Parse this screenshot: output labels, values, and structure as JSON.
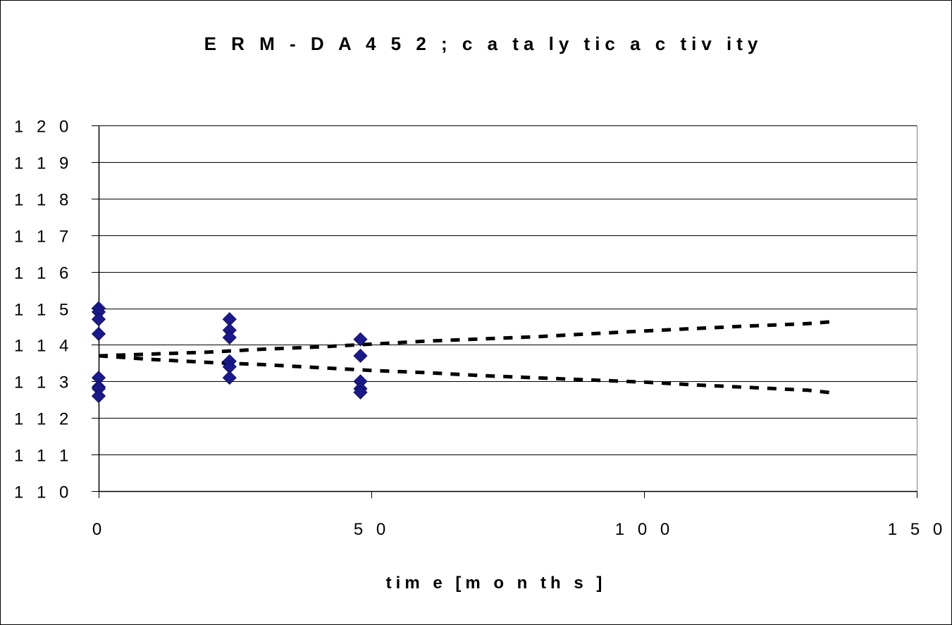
{
  "chart_data": {
    "type": "scatter",
    "title": "E R M  - D A 4 5 2 ; c a ta ly tic  a c tiv ity",
    "xlabel": "tim e  [m o n th s ]",
    "ylabel": "",
    "xlim": [
      0,
      150
    ],
    "ylim": [
      110,
      120
    ],
    "xticks": [
      0,
      50,
      100,
      150
    ],
    "xtick_labels": [
      "0",
      "5 0",
      "1 0 0",
      "1 5 0"
    ],
    "yticks": [
      110,
      111,
      112,
      113,
      114,
      115,
      116,
      117,
      118,
      119,
      120
    ],
    "ytick_labels": [
      "1 1 0",
      "1 1 1",
      "1 1 2",
      "1 1 3",
      "1 1 4",
      "1 1 5",
      "1 1 6",
      "1 1 7",
      "1 1 8",
      "1 1 9",
      "1 2 0"
    ],
    "grid": "horizontal",
    "legend": "none",
    "colors": {
      "points": "#1a1a8c",
      "bounds": "#000000",
      "gridlines": "#000000"
    },
    "series": [
      {
        "type": "scatter",
        "marker": "diamond",
        "points": [
          {
            "x": 0,
            "y": 115.0
          },
          {
            "x": 0,
            "y": 114.9
          },
          {
            "x": 0,
            "y": 114.7
          },
          {
            "x": 0,
            "y": 114.3
          },
          {
            "x": 0,
            "y": 113.1
          },
          {
            "x": 0,
            "y": 112.85
          },
          {
            "x": 0,
            "y": 112.8
          },
          {
            "x": 0,
            "y": 112.6
          },
          {
            "x": 24,
            "y": 114.7
          },
          {
            "x": 24,
            "y": 114.4
          },
          {
            "x": 24,
            "y": 114.2
          },
          {
            "x": 24,
            "y": 113.55
          },
          {
            "x": 24,
            "y": 113.4
          },
          {
            "x": 24,
            "y": 113.1
          },
          {
            "x": 48,
            "y": 114.15
          },
          {
            "x": 48,
            "y": 113.7
          },
          {
            "x": 48,
            "y": 113.0
          },
          {
            "x": 48,
            "y": 112.8
          },
          {
            "x": 48,
            "y": 112.7
          }
        ]
      },
      {
        "type": "line",
        "style": "dashed",
        "x": [
          0,
          10,
          20,
          30,
          40,
          50,
          60,
          70,
          80,
          90,
          100,
          110,
          120,
          130,
          135
        ],
        "values": [
          113.7,
          113.75,
          113.8,
          113.88,
          113.94,
          114.02,
          114.1,
          114.16,
          114.22,
          114.3,
          114.38,
          114.45,
          114.52,
          114.58,
          114.64
        ]
      },
      {
        "type": "line",
        "style": "dashed",
        "x": [
          0,
          10,
          20,
          30,
          40,
          50,
          60,
          70,
          80,
          90,
          100,
          110,
          120,
          130,
          135
        ],
        "values": [
          113.7,
          113.6,
          113.52,
          113.46,
          113.38,
          113.3,
          113.24,
          113.16,
          113.1,
          113.04,
          112.98,
          112.9,
          112.83,
          112.76,
          112.68
        ]
      }
    ]
  }
}
